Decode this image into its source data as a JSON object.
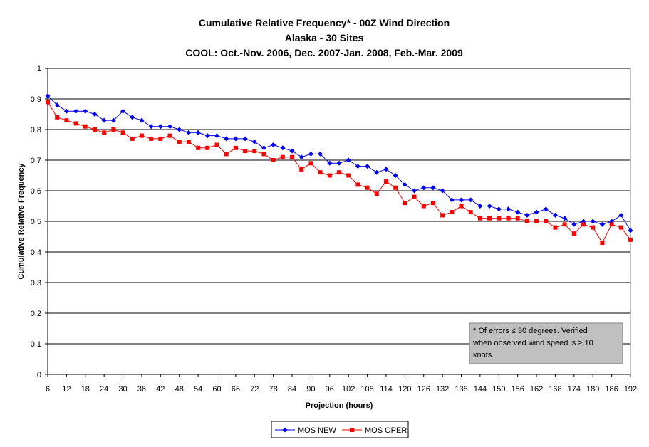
{
  "chart_data": {
    "type": "line",
    "title_lines": [
      "Cumulative Relative Frequency* - 00Z Wind Direction",
      "Alaska - 30 Sites",
      "COOL: Oct.-Nov. 2006, Dec. 2007-Jan. 2008, Feb.-Mar. 2009"
    ],
    "xlabel": "Projection (hours)",
    "ylabel": "Cumulative Relative Frequency",
    "ylim": [
      0,
      1
    ],
    "yticks": [
      "0",
      "0.1",
      "0.2",
      "0.3",
      "0.4",
      "0.5",
      "0.6",
      "0.7",
      "0.8",
      "0.9",
      "1"
    ],
    "xticks": [
      "6",
      "12",
      "18",
      "24",
      "30",
      "36",
      "42",
      "48",
      "54",
      "60",
      "66",
      "72",
      "78",
      "84",
      "90",
      "96",
      "102",
      "108",
      "114",
      "120",
      "126",
      "132",
      "138",
      "144",
      "150",
      "156",
      "162",
      "168",
      "174",
      "180",
      "186",
      "192"
    ],
    "grid": "horizontal",
    "legend_position": "bottom",
    "annotation": "* Of errors ≤ 30 degrees. Verified when observed wind speed is ≥ 10 knots.",
    "x": [
      6,
      9,
      12,
      15,
      18,
      21,
      24,
      27,
      30,
      33,
      36,
      39,
      42,
      45,
      48,
      51,
      54,
      57,
      60,
      63,
      66,
      69,
      72,
      75,
      78,
      81,
      84,
      87,
      90,
      93,
      96,
      99,
      102,
      105,
      108,
      111,
      114,
      117,
      120,
      123,
      126,
      129,
      132,
      135,
      138,
      141,
      144,
      147,
      150,
      153,
      156,
      159,
      162,
      165,
      168,
      171,
      174,
      177,
      180,
      183,
      186,
      189,
      192
    ],
    "series": [
      {
        "name": "MOS NEW",
        "color": "#0000ff",
        "marker": "diamond",
        "values": [
          0.91,
          0.88,
          0.86,
          0.86,
          0.86,
          0.85,
          0.83,
          0.83,
          0.86,
          0.84,
          0.83,
          0.81,
          0.81,
          0.81,
          0.8,
          0.79,
          0.79,
          0.78,
          0.78,
          0.77,
          0.77,
          0.77,
          0.76,
          0.74,
          0.75,
          0.74,
          0.73,
          0.71,
          0.72,
          0.72,
          0.69,
          0.69,
          0.7,
          0.68,
          0.68,
          0.66,
          0.67,
          0.65,
          0.62,
          0.6,
          0.61,
          0.61,
          0.6,
          0.57,
          0.57,
          0.57,
          0.55,
          0.55,
          0.54,
          0.54,
          0.53,
          0.52,
          0.53,
          0.54,
          0.52,
          0.51,
          0.49,
          0.5,
          0.5,
          0.49,
          0.5,
          0.52,
          0.47
        ]
      },
      {
        "name": "MOS OPER",
        "color": "#ff0000",
        "marker": "square",
        "values": [
          0.89,
          0.84,
          0.83,
          0.82,
          0.81,
          0.8,
          0.79,
          0.8,
          0.79,
          0.77,
          0.78,
          0.77,
          0.77,
          0.78,
          0.76,
          0.76,
          0.74,
          0.74,
          0.75,
          0.72,
          0.74,
          0.73,
          0.73,
          0.72,
          0.7,
          0.71,
          0.71,
          0.67,
          0.69,
          0.66,
          0.65,
          0.66,
          0.65,
          0.62,
          0.61,
          0.59,
          0.63,
          0.61,
          0.56,
          0.58,
          0.55,
          0.56,
          0.52,
          0.53,
          0.55,
          0.53,
          0.51,
          0.51,
          0.51,
          0.51,
          0.51,
          0.5,
          0.5,
          0.5,
          0.48,
          0.49,
          0.46,
          0.49,
          0.48,
          0.43,
          0.49,
          0.48,
          0.44
        ]
      }
    ]
  }
}
